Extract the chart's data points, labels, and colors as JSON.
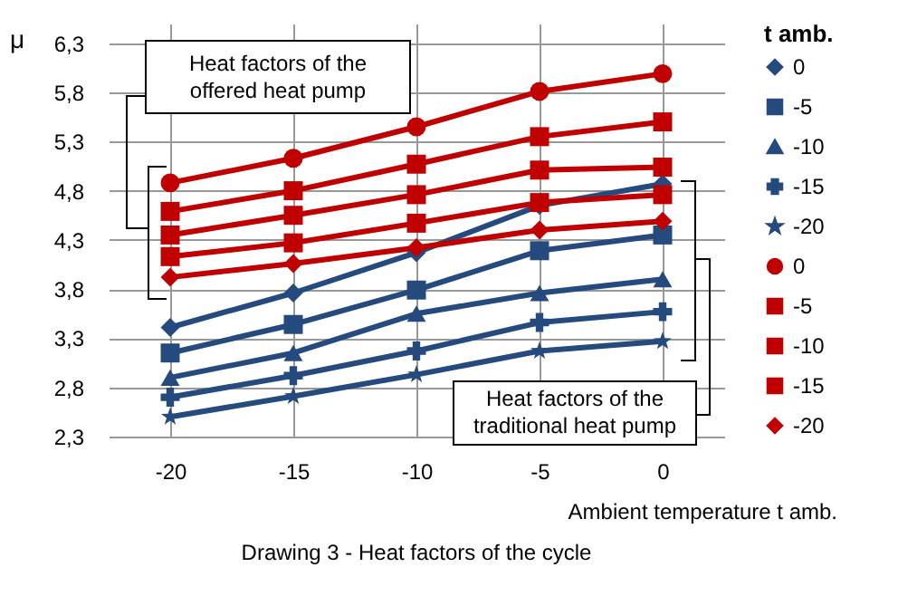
{
  "chart_data": {
    "type": "line",
    "title": "Drawing 3 -  Heat  factors of the cycle",
    "xlabel": "Ambient temperature t amb.",
    "ylabel": "μ",
    "legend_title": "t amb.",
    "x": [
      -20,
      -15,
      -10,
      -5,
      0
    ],
    "series": [
      {
        "name": "0",
        "color": "#254a7e",
        "marker": "diamond",
        "values": [
          3.41,
          3.76,
          4.17,
          4.65,
          4.87
        ]
      },
      {
        "name": "-5",
        "color": "#254a7e",
        "marker": "square",
        "values": [
          3.15,
          3.44,
          3.79,
          4.19,
          4.35
        ]
      },
      {
        "name": "-10",
        "color": "#254a7e",
        "marker": "triangle",
        "values": [
          2.9,
          3.15,
          3.55,
          3.76,
          3.9
        ]
      },
      {
        "name": "-15",
        "color": "#254a7e",
        "marker": "cross",
        "values": [
          2.7,
          2.92,
          3.17,
          3.46,
          3.57
        ]
      },
      {
        "name": "-20",
        "color": "#254a7e",
        "marker": "star",
        "values": [
          2.5,
          2.71,
          2.93,
          3.17,
          3.27
        ]
      },
      {
        "name": "0",
        "color": "#c00000",
        "marker": "circle",
        "values": [
          4.88,
          5.13,
          5.45,
          5.81,
          5.99
        ]
      },
      {
        "name": "-5",
        "color": "#c00000",
        "marker": "square",
        "values": [
          4.59,
          4.8,
          5.07,
          5.35,
          5.5
        ]
      },
      {
        "name": "-10",
        "color": "#c00000",
        "marker": "square",
        "values": [
          4.35,
          4.55,
          4.76,
          5.01,
          5.04
        ]
      },
      {
        "name": "-15",
        "color": "#c00000",
        "marker": "square",
        "values": [
          4.13,
          4.27,
          4.47,
          4.68,
          4.76
        ]
      },
      {
        "name": "-20",
        "color": "#c00000",
        "marker": "diamond",
        "values": [
          3.92,
          4.06,
          4.22,
          4.4,
          4.49
        ]
      }
    ],
    "xlim": [
      -22.5,
      2.5
    ],
    "xticks": [
      -20,
      -15,
      -10,
      -5,
      0
    ],
    "ylim": [
      2.3,
      6.5
    ],
    "yticks": [
      {
        "value": 2.3,
        "label": "2,3"
      },
      {
        "value": 2.8,
        "label": "2,8"
      },
      {
        "value": 3.3,
        "label": "3,3"
      },
      {
        "value": 3.8,
        "label": "3,8"
      },
      {
        "value": 4.3,
        "label": "4,3"
      },
      {
        "value": 4.8,
        "label": "4,8"
      },
      {
        "value": 5.3,
        "label": "5,3"
      },
      {
        "value": 5.8,
        "label": "5,8"
      },
      {
        "value": 6.3,
        "label": "6,3"
      }
    ],
    "grid": true,
    "legend": "right",
    "annotations": [
      "Heat factors of the offered heat pump",
      "Heat factors of the traditional heat pump"
    ]
  }
}
